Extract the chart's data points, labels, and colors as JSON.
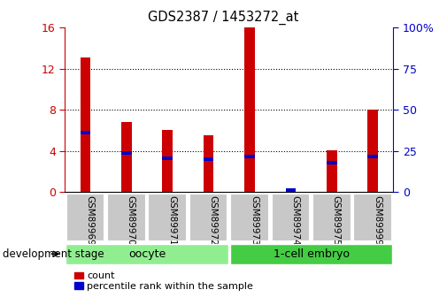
{
  "title": "GDS2387 / 1453272_at",
  "samples": [
    "GSM89969",
    "GSM89970",
    "GSM89971",
    "GSM89972",
    "GSM89973",
    "GSM89974",
    "GSM89975",
    "GSM89999"
  ],
  "count_values": [
    13.1,
    6.8,
    6.0,
    5.5,
    16.0,
    0.3,
    4.1,
    8.0
  ],
  "percentile_values": [
    36.2,
    23.8,
    20.6,
    20.0,
    21.9,
    1.3,
    18.1,
    21.9
  ],
  "groups": [
    {
      "label": "oocyte",
      "indices": [
        0,
        1,
        2,
        3
      ],
      "color": "#90ee90"
    },
    {
      "label": "1-cell embryo",
      "indices": [
        4,
        5,
        6,
        7
      ],
      "color": "#44cc44"
    }
  ],
  "left_ylim": [
    0,
    16
  ],
  "right_ylim": [
    0,
    100
  ],
  "left_yticks": [
    0,
    4,
    8,
    12,
    16
  ],
  "right_yticks": [
    0,
    25,
    50,
    75,
    100
  ],
  "left_ytick_labels": [
    "0",
    "4",
    "8",
    "12",
    "16"
  ],
  "right_ytick_labels": [
    "0",
    "25",
    "50",
    "75",
    "100%"
  ],
  "count_color": "#cc0000",
  "percentile_color": "#0000cc",
  "bar_width": 0.25,
  "plot_bg": "#ffffff",
  "grid_color": "#000000",
  "group_label_text": "development stage",
  "legend_count": "count",
  "legend_percentile": "percentile rank within the sample",
  "sample_box_color": "#c8c8c8",
  "oocyte_color": "#b0f0b0",
  "embryo_color": "#44dd44"
}
